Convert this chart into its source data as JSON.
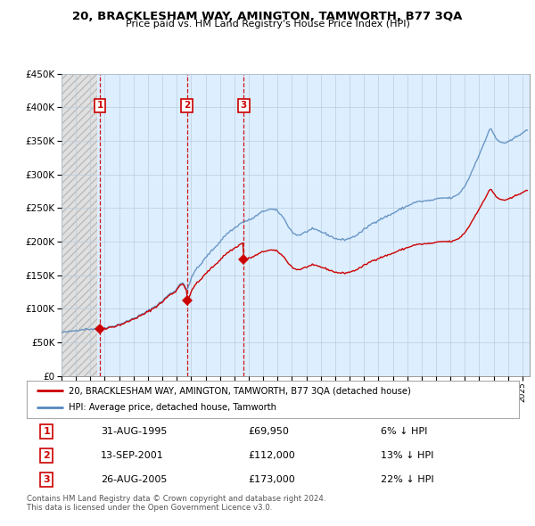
{
  "title": "20, BRACKLESHAM WAY, AMINGTON, TAMWORTH, B77 3QA",
  "subtitle": "Price paid vs. HM Land Registry's House Price Index (HPI)",
  "ylim": [
    0,
    450000
  ],
  "xlim_start": 1993.0,
  "xlim_end": 2025.5,
  "sale_dates": [
    1995.664,
    2001.703,
    2005.648
  ],
  "sale_prices": [
    69950,
    112000,
    173000
  ],
  "sale_labels": [
    "1",
    "2",
    "3"
  ],
  "sale_label_dates": [
    "31-AUG-1995",
    "13-SEP-2001",
    "26-AUG-2005"
  ],
  "sale_label_prices": [
    "£69,950",
    "£112,000",
    "£173,000"
  ],
  "sale_label_pct": [
    "6% ↓ HPI",
    "13% ↓ HPI",
    "22% ↓ HPI"
  ],
  "hpi_color": "#5588bb",
  "hpi_color_light": "#aabbdd",
  "sale_color": "#cc0000",
  "background_plain": "#ddeeff",
  "background_hatch": "#e8e8e8",
  "grid_color": "#bbccdd",
  "hatch_cutoff": 1995.5,
  "legend_line1": "20, BRACKLESHAM WAY, AMINGTON, TAMWORTH, B77 3QA (detached house)",
  "legend_line2": "HPI: Average price, detached house, Tamworth",
  "footnote": "Contains HM Land Registry data © Crown copyright and database right 2024.\nThis data is licensed under the Open Government Licence v3.0."
}
